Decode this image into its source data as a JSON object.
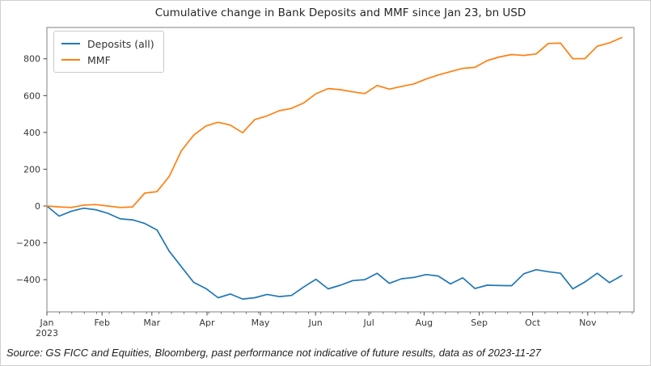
{
  "title": "Cumulative change in Bank Deposits and MMF since Jan 23, bn USD",
  "source_note": "Source: GS FICC and Equities, Bloomberg, past performance not indicative of future results, data as of 2023-11-27",
  "legend": {
    "items": [
      {
        "label": "Deposits (all)",
        "color": "#1f77b4"
      },
      {
        "label": "MMF",
        "color": "#ff7f0e"
      }
    ]
  },
  "colors": {
    "deposits_line": "#1f77b4",
    "mmf_line": "#ff7f0e",
    "spine": "#808080",
    "tick_label": "#383838"
  },
  "chart_data": {
    "type": "line",
    "title": "Cumulative change in Bank Deposits and MMF since Jan 23, bn USD",
    "x_description": "Weekly observations, January 2023 through late November 2023",
    "x_tick_labels": [
      "Jan",
      "Feb",
      "Mar",
      "Apr",
      "May",
      "Jun",
      "Jul",
      "Aug",
      "Sep",
      "Oct",
      "Nov"
    ],
    "x_first_tick_sublabel": "2023",
    "x_tick_day_offsets": [
      0,
      31,
      59,
      90,
      120,
      151,
      181,
      212,
      243,
      273,
      304
    ],
    "x_axis_total_days": 330,
    "minor_tick_interval_days": 7,
    "y_ticks": [
      800,
      600,
      400,
      200,
      0,
      -200,
      -400
    ],
    "ylabel": "",
    "xlabel": "",
    "ylim": [
      -575,
      970
    ],
    "grid": false,
    "legend_position": "upper left",
    "units": "bn USD",
    "series": [
      {
        "name": "Deposits (all)",
        "color": "#1f77b4",
        "values": [
          0,
          -55,
          -28,
          -12,
          -20,
          -40,
          -70,
          -75,
          -95,
          -130,
          -245,
          -330,
          -415,
          -448,
          -498,
          -478,
          -505,
          -498,
          -480,
          -492,
          -486,
          -440,
          -398,
          -450,
          -430,
          -405,
          -400,
          -365,
          -420,
          -395,
          -388,
          -372,
          -380,
          -423,
          -390,
          -448,
          -430,
          -432,
          -433,
          -368,
          -346,
          -357,
          -365,
          -450,
          -412,
          -365,
          -416,
          -378
        ]
      },
      {
        "name": "MMF",
        "color": "#ff7f0e",
        "values": [
          0,
          -5,
          -8,
          5,
          8,
          0,
          -8,
          -5,
          70,
          78,
          160,
          300,
          385,
          435,
          455,
          440,
          398,
          470,
          490,
          518,
          530,
          560,
          610,
          638,
          632,
          620,
          611,
          655,
          635,
          650,
          663,
          690,
          712,
          730,
          748,
          753,
          790,
          810,
          823,
          818,
          826,
          883,
          885,
          800,
          801,
          868,
          886,
          915
        ]
      }
    ]
  }
}
